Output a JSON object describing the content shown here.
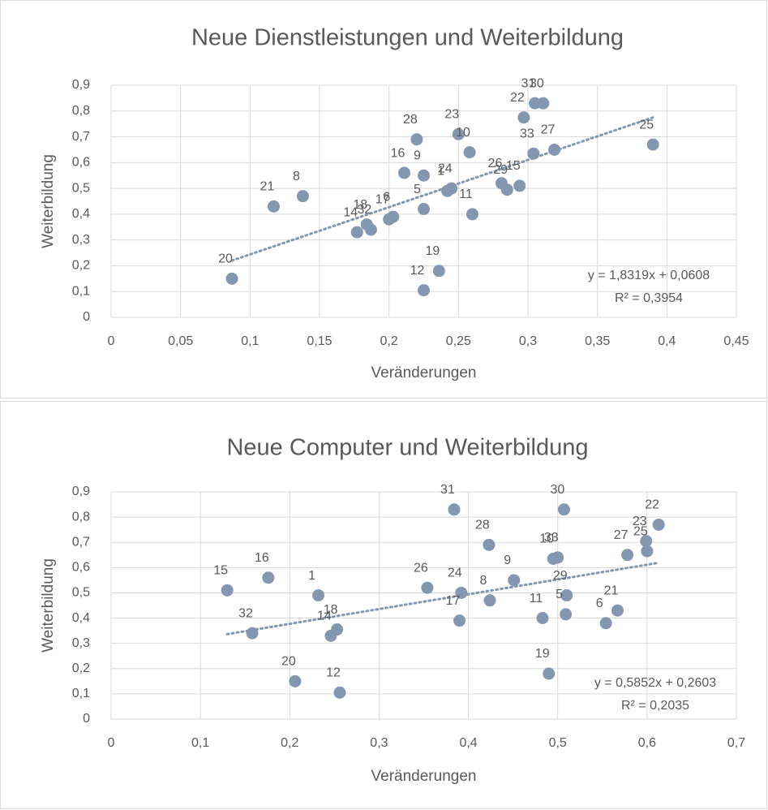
{
  "chart_data": [
    {
      "type": "scatter",
      "title": "Neue Dienstleistungen und Weiterbildung",
      "x_label": "Veränderungen",
      "y_label": "Weiterbildung",
      "color": "#8497b0",
      "grid": true,
      "xlim": [
        0,
        0.45
      ],
      "ylim": [
        0,
        0.9
      ],
      "xticks": [
        0,
        {
          "value": 0.05,
          "label": "0,05"
        },
        {
          "value": 0.1,
          "label": "0,1"
        },
        {
          "value": 0.15,
          "label": "0,15"
        },
        {
          "value": 0.2,
          "label": "0,2"
        },
        {
          "value": 0.25,
          "label": "0,25"
        },
        {
          "value": 0.3,
          "label": "0,3"
        },
        {
          "value": 0.35,
          "label": "0,35"
        },
        {
          "value": 0.4,
          "label": "0,4"
        },
        {
          "value": 0.45,
          "label": "0,45"
        }
      ],
      "yticks": [
        0,
        {
          "value": 0.1,
          "label": "0,1"
        },
        {
          "value": 0.2,
          "label": "0,2"
        },
        {
          "value": 0.3,
          "label": "0,3"
        },
        {
          "value": 0.4,
          "label": "0,4"
        },
        {
          "value": 0.5,
          "label": "0,5"
        },
        {
          "value": 0.6,
          "label": "0,6"
        },
        {
          "value": 0.7,
          "label": "0,7"
        },
        {
          "value": 0.8,
          "label": "0,8"
        },
        {
          "value": 0.9,
          "label": "0,9"
        }
      ],
      "point_labels": [
        "20",
        "21",
        "8",
        "14",
        "18",
        "32",
        "6",
        "17",
        "16",
        "28",
        "9",
        "12",
        "19",
        "5",
        "1",
        "24",
        "23",
        "10",
        "11",
        "26",
        "29",
        "15",
        "33",
        "27",
        "22",
        "31",
        "30",
        "25"
      ],
      "x": [
        0.087,
        0.117,
        0.138,
        0.177,
        0.184,
        0.187,
        0.203,
        0.2,
        0.211,
        0.22,
        0.225,
        0.225,
        0.236,
        0.225,
        0.242,
        0.245,
        0.25,
        0.258,
        0.26,
        0.281,
        0.285,
        0.294,
        0.304,
        0.319,
        0.297,
        0.305,
        0.311,
        0.39
      ],
      "y": [
        0.15,
        0.43,
        0.47,
        0.33,
        0.36,
        0.34,
        0.39,
        0.38,
        0.56,
        0.69,
        0.55,
        0.105,
        0.18,
        0.42,
        0.49,
        0.5,
        0.71,
        0.64,
        0.4,
        0.52,
        0.495,
        0.51,
        0.635,
        0.65,
        0.775,
        0.83,
        0.83,
        0.67
      ],
      "trendline": {
        "slope": 1.8319,
        "intercept": 0.0608,
        "equation": "y = 1,8319x + 0,0608",
        "r2": "R² = 0,3954"
      }
    },
    {
      "type": "scatter",
      "title": "Neue Computer und Weiterbildung",
      "x_label": "Veränderungen",
      "y_label": "Weiterbildung",
      "color": "#8497b0",
      "grid": true,
      "xlim": [
        0,
        0.7
      ],
      "ylim": [
        0,
        0.9
      ],
      "xticks": [
        0,
        {
          "value": 0.1,
          "label": "0,1"
        },
        {
          "value": 0.2,
          "label": "0,2"
        },
        {
          "value": 0.3,
          "label": "0,3"
        },
        {
          "value": 0.4,
          "label": "0,4"
        },
        {
          "value": 0.5,
          "label": "0,5"
        },
        {
          "value": 0.6,
          "label": "0,6"
        },
        {
          "value": 0.7,
          "label": "0,7"
        }
      ],
      "yticks": [
        0,
        {
          "value": 0.1,
          "label": "0,1"
        },
        {
          "value": 0.2,
          "label": "0,2"
        },
        {
          "value": 0.3,
          "label": "0,3"
        },
        {
          "value": 0.4,
          "label": "0,4"
        },
        {
          "value": 0.5,
          "label": "0,5"
        },
        {
          "value": 0.6,
          "label": "0,6"
        },
        {
          "value": 0.7,
          "label": "0,7"
        },
        {
          "value": 0.8,
          "label": "0,8"
        },
        {
          "value": 0.9,
          "label": "0,9"
        }
      ],
      "point_labels": [
        "15",
        "32",
        "16",
        "20",
        "1",
        "14",
        "18",
        "12",
        "26",
        "31",
        "24",
        "17",
        "28",
        "8",
        "9",
        "10",
        "33",
        "30",
        "11",
        "29",
        "5",
        "19",
        "6",
        "21",
        "23",
        "27",
        "25",
        "22"
      ],
      "x": [
        0.13,
        0.158,
        0.176,
        0.206,
        0.232,
        0.246,
        0.253,
        0.256,
        0.354,
        0.384,
        0.392,
        0.39,
        0.423,
        0.424,
        0.451,
        0.495,
        0.5,
        0.507,
        0.483,
        0.51,
        0.509,
        0.49,
        0.554,
        0.567,
        0.599,
        0.578,
        0.6,
        0.613
      ],
      "y": [
        0.51,
        0.34,
        0.56,
        0.15,
        0.49,
        0.33,
        0.355,
        0.105,
        0.52,
        0.83,
        0.5,
        0.39,
        0.69,
        0.47,
        0.55,
        0.635,
        0.64,
        0.83,
        0.4,
        0.49,
        0.415,
        0.18,
        0.38,
        0.43,
        0.705,
        0.65,
        0.665,
        0.77
      ],
      "trendline": {
        "slope": 0.5852,
        "intercept": 0.2603,
        "equation": "y = 0,5852x + 0,2603",
        "r2": "R² = 0,2035"
      }
    }
  ]
}
